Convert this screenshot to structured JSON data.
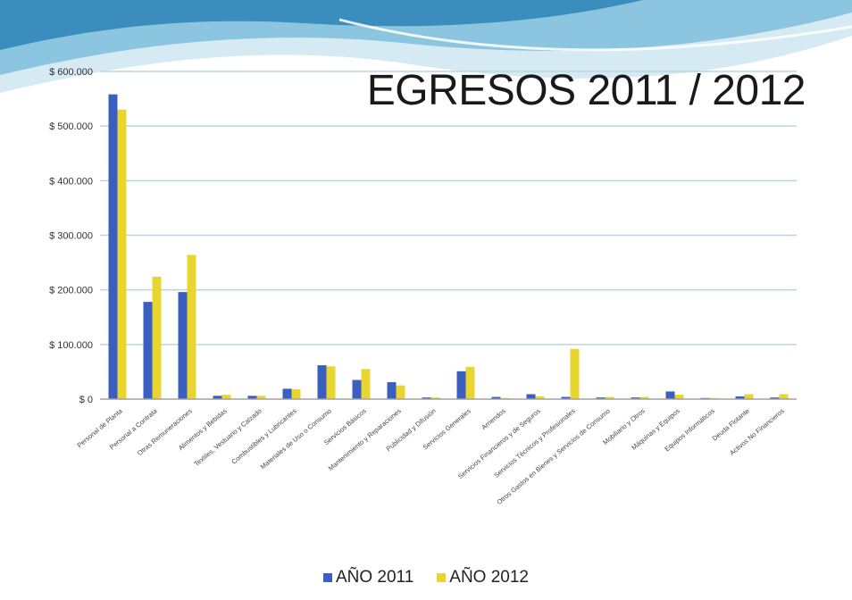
{
  "colors": {
    "banner_light": "#cfe6f2",
    "banner_mid": "#7fbfdc",
    "banner_dark": "#2f86b6",
    "grid": "#b9d6e0",
    "axis": "#a0a0a0",
    "series_2011": "#3b5fc0",
    "series_2012": "#e8d530"
  },
  "chart_data": {
    "type": "bar",
    "title": "EGRESOS 2011  / 2012",
    "xlabel": "",
    "ylabel": "",
    "ylim": [
      0,
      600000
    ],
    "yticks": [
      "$ 0",
      "$ 100.000",
      "$ 200.000",
      "$ 300.000",
      "$ 400.000",
      "$ 500.000",
      "$ 600.000"
    ],
    "grid": true,
    "legend_position": "bottom",
    "categories": [
      "Personal de Planta",
      "Personal a Contrata",
      "Otras Remuneraciones",
      "Alimentos y Bebidas",
      "Textiles, Vestuario y Calzado",
      "Combustibles y Lubricantes",
      "Materiales de Uso o Consumo",
      "Servicios Básicos",
      "Mantenimiento y Reparaciones",
      "Publicidad y Difusión",
      "Servicios Generales",
      "Arriendos",
      "Servicios Financieros y de Seguros",
      "Servicios Técnicos y Profesionales",
      "Otros Gastos en Bienes y Servicios de Consumo",
      "Mobiliario y Otros",
      "Máquinas y Equipos",
      "Equipos Informáticos",
      "Deuda Flotante",
      "Activos No Financieros"
    ],
    "series": [
      {
        "name": "AÑO 2011",
        "values": [
          558000,
          178000,
          196000,
          6000,
          6000,
          19000,
          62000,
          35000,
          31000,
          3000,
          51000,
          4000,
          9000,
          4000,
          3000,
          3000,
          14000,
          2000,
          5000,
          3000
        ]
      },
      {
        "name": "AÑO 2012",
        "values": [
          530000,
          224000,
          264000,
          8000,
          6000,
          18000,
          60000,
          55000,
          25000,
          3000,
          59000,
          2000,
          5000,
          92000,
          4000,
          4000,
          8000,
          2000,
          9000,
          9000
        ]
      }
    ]
  }
}
